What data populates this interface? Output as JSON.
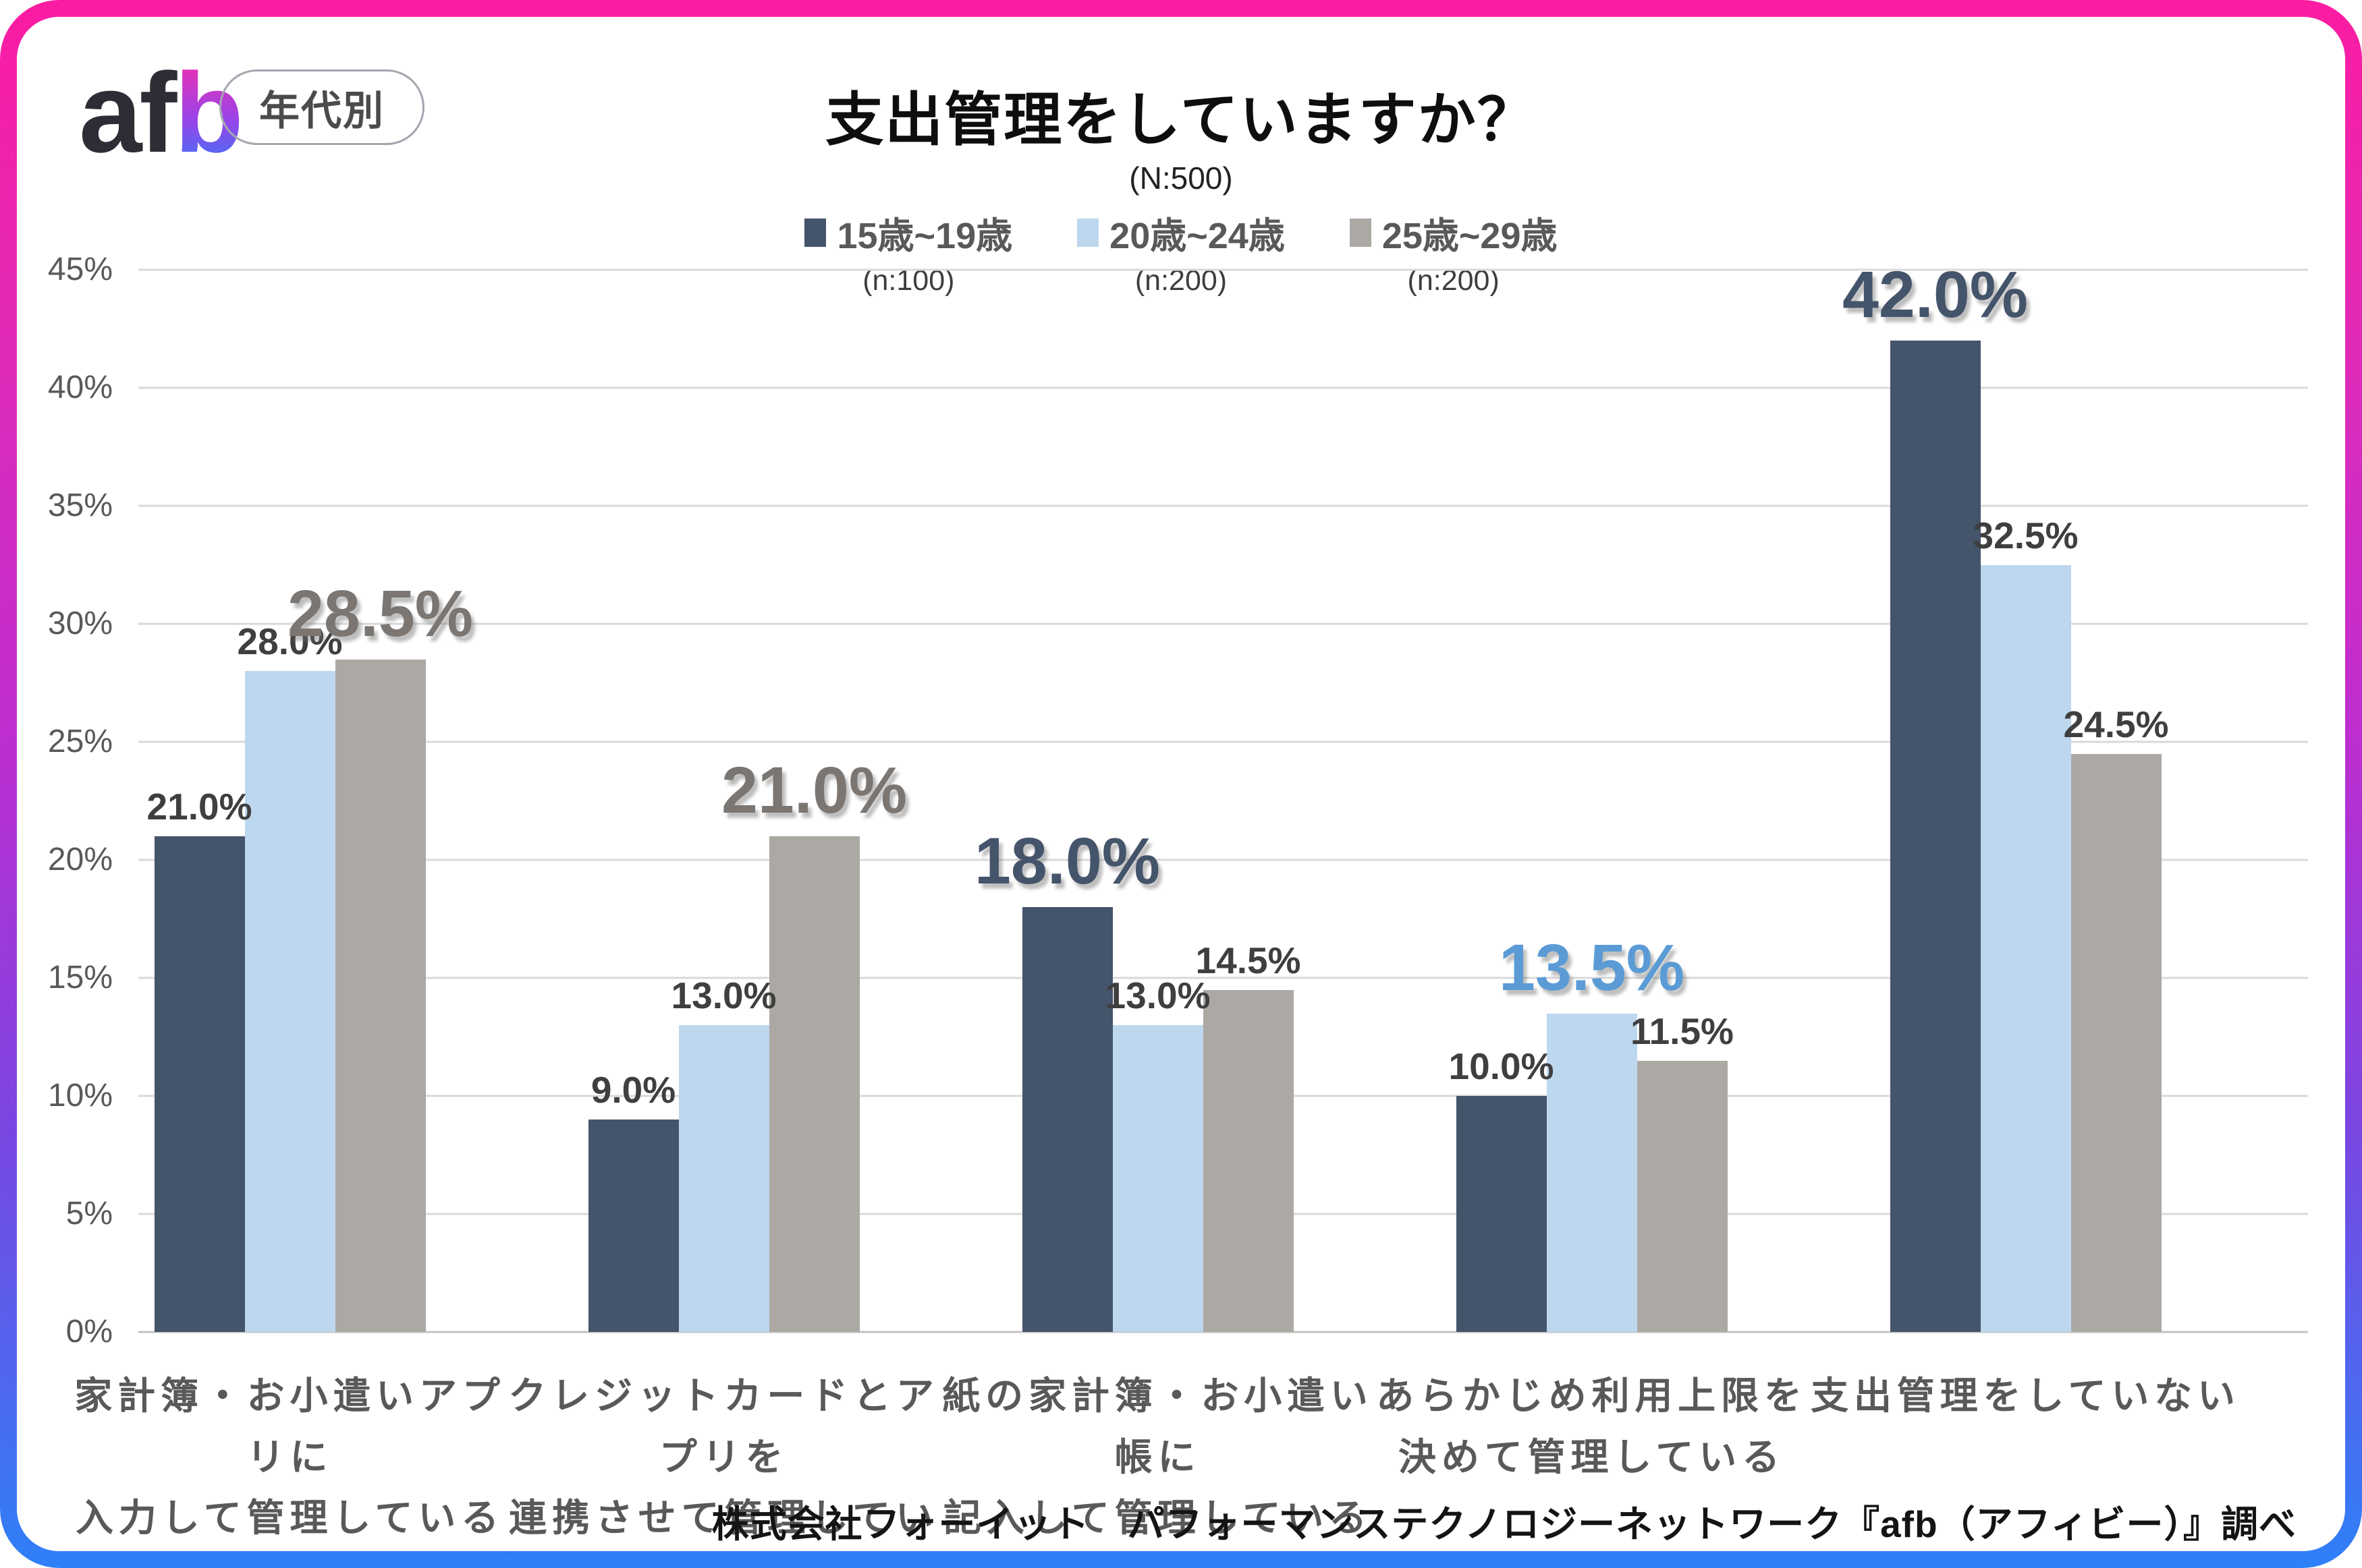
{
  "frame": {
    "gradient_top": "#FB1CA2",
    "gradient_mid": "#BC2ED1",
    "gradient_bottom": "#2E80F8"
  },
  "header": {
    "logo_af": "af",
    "logo_b": "b",
    "badge_label": "年代別",
    "title": "支出管理をしていますか？",
    "sample_size": "(N:500)"
  },
  "legend": {
    "items": [
      {
        "label": "15歳~19歳",
        "n": "(n:100)",
        "color": "#44546A"
      },
      {
        "label": "20歳~24歳",
        "n": "(n:200)",
        "color": "#BDD7EE"
      },
      {
        "label": "25歳~29歳",
        "n": "(n:200)",
        "color": "#ACA8A3"
      }
    ]
  },
  "chart_data": {
    "type": "bar",
    "title": "支出管理をしていますか？",
    "sample_label": "(N:500)",
    "ylim": [
      0,
      45
    ],
    "ytick_step": 5,
    "ytick_suffix": "%",
    "grid": true,
    "legend_position": "top",
    "value_label_format": "one-decimal-percent",
    "categories": [
      [
        "家計簿・お小遣いアプリに",
        "入力して管理している"
      ],
      [
        "クレジットカードとアプリを",
        "連携させて管理している"
      ],
      [
        "紙の家計簿・お小遣い帳に",
        "記入して管理している"
      ],
      [
        "あらかじめ利用上限を",
        "決めて管理している"
      ],
      [
        "支出管理をしていない"
      ]
    ],
    "series": [
      {
        "name": "15歳~19歳",
        "color": "#44546A",
        "highlight_color": "#44546A",
        "values": [
          21.0,
          9.0,
          18.0,
          10.0,
          42.0
        ]
      },
      {
        "name": "20歳~24歳",
        "color": "#BDD7EE",
        "highlight_color": "#5B9BD5",
        "values": [
          28.0,
          13.0,
          13.0,
          13.5,
          32.5
        ]
      },
      {
        "name": "25歳~29歳",
        "color": "#ACA8A3",
        "highlight_color": "#7B7672",
        "values": [
          28.5,
          21.0,
          14.5,
          11.5,
          24.5
        ]
      }
    ],
    "highlighted_series_per_category": [
      2,
      2,
      0,
      1,
      0
    ],
    "gridline_color": "#D9D9D9",
    "value_label_color": "#3F3F3F"
  },
  "source": "株式会社フォーイット　パフォーマンステクノロジーネットワーク『afb（アフィビー）』調べ"
}
